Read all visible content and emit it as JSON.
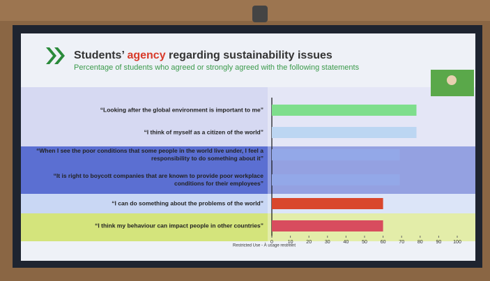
{
  "chart_data": {
    "type": "bar",
    "orientation": "horizontal",
    "title": [
      "Students’ ",
      "agency",
      " regarding sustainability issues"
    ],
    "subtitle": "Percentage of students who agreed or strongly agreed with the following statements",
    "footnote": "Restricted Use - À usage restreint",
    "categories": [
      "“Looking after the global environment is important to me”",
      "“I think of myself as a citizen of the world”",
      "“When I see the poor conditions that some people in the world live under, I feel a responsibility to do something about it”",
      "“It is right to boycott companies that are known to provide poor workplace conditions for their employees”",
      "“I can do something about the problems of the world”",
      "“I think my behaviour can impact people in other countries”"
    ],
    "values": [
      78,
      78,
      69,
      69,
      60,
      60
    ],
    "colors": [
      "#7ede8c",
      "#bcd6f2",
      "#93a8e8",
      "#93a8e8",
      "#d9472c",
      "#d84c5e"
    ],
    "xlim": [
      0,
      100
    ],
    "xticks": [
      0,
      10,
      20,
      30,
      40,
      50,
      60,
      70,
      80,
      90,
      100
    ]
  }
}
